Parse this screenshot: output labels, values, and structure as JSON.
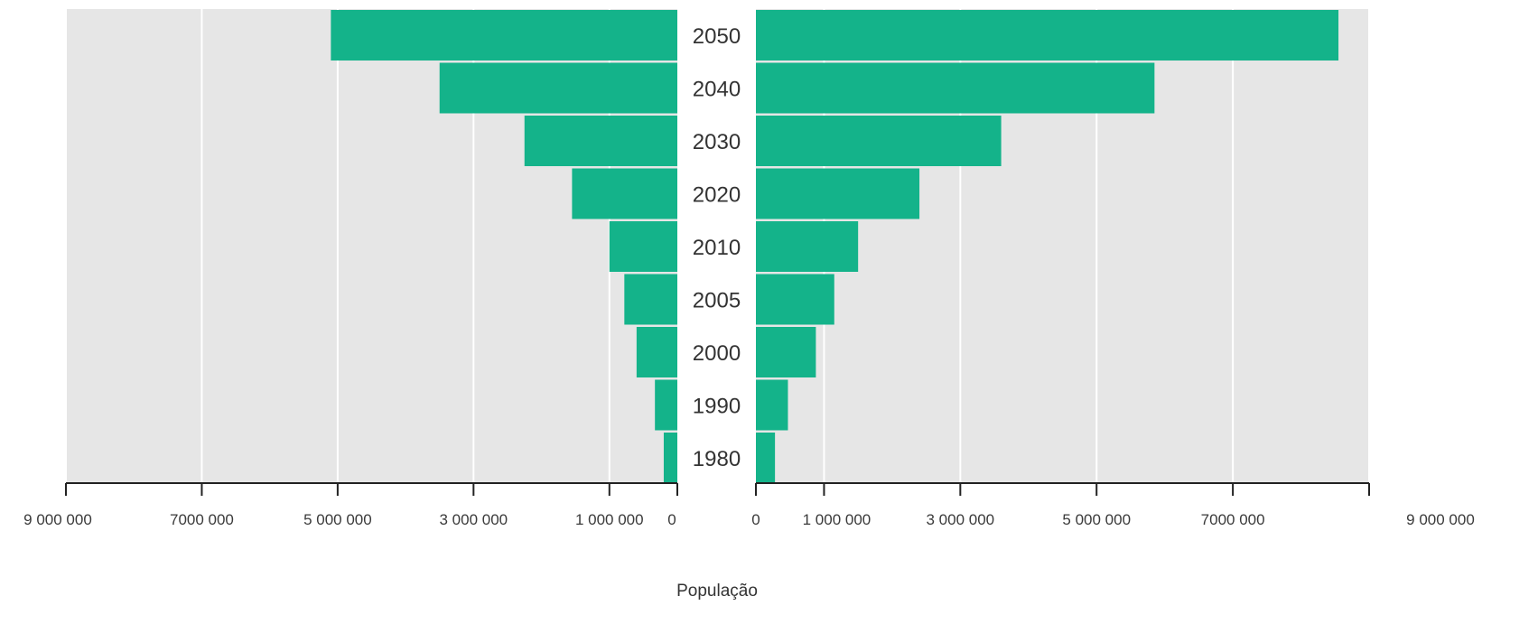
{
  "chart_data": {
    "type": "bar",
    "orientation": "horizontal",
    "layout": "butterfly",
    "categories": [
      "2050",
      "2040",
      "2030",
      "2020",
      "2010",
      "2005",
      "2000",
      "1990",
      "1980"
    ],
    "series": [
      {
        "side": "left",
        "values": [
          5100000,
          3500000,
          2250000,
          1550000,
          1000000,
          780000,
          600000,
          330000,
          200000
        ]
      },
      {
        "side": "right",
        "values": [
          8550000,
          5850000,
          3600000,
          2400000,
          1500000,
          1150000,
          880000,
          470000,
          280000
        ]
      }
    ],
    "xlabel": "População",
    "xlim": [
      0,
      9000000
    ],
    "left_tick_labels": [
      "9 000 000",
      "7000 000",
      "5 000 000",
      "3 000 000",
      "1 000 000",
      "0"
    ],
    "right_tick_labels": [
      "0",
      "1 000 000",
      "3 000 000",
      "5 000 000",
      "7000 000",
      "9 000 000"
    ],
    "tick_values": [
      9000000,
      7000000,
      5000000,
      3000000,
      1000000,
      0
    ],
    "grid": true,
    "colors": {
      "bar": "#14b38a",
      "plot_background": "#e6e6e6",
      "gridline": "#ffffff",
      "axis": "#222222"
    }
  }
}
